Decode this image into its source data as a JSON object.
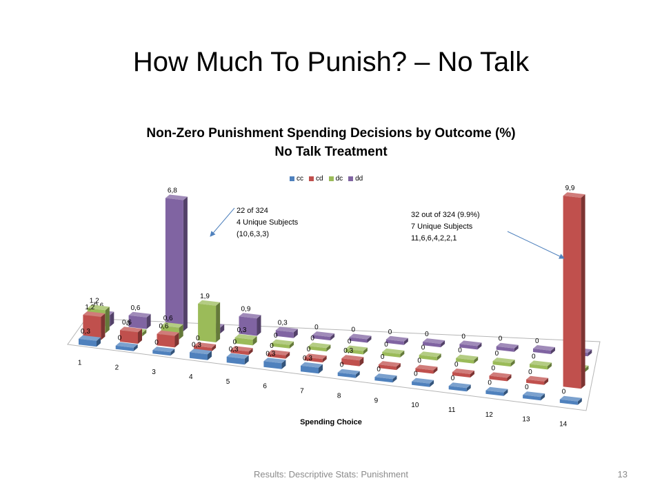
{
  "slide": {
    "title": "How Much To Punish? – No Talk",
    "footer": "Results: Descriptive Stats: Punishment",
    "page_number": "13"
  },
  "annotations": {
    "left": [
      "22 of 324",
      "4 Unique Subjects",
      "(10,6,3,3)"
    ],
    "right": [
      "32 out of 324  (9.9%)",
      "7 Unique Subjects",
      "11,6,6,4,2,2,1"
    ]
  },
  "chart_data": {
    "type": "bar",
    "style": "3d-column",
    "title": "Non-Zero Punishment Spending Decisions by Outcome (%)",
    "subtitle": "No Talk Treatment",
    "xlabel": "Spending Choice",
    "ylabel": "",
    "legend_position": "top",
    "categories": [
      "1",
      "2",
      "3",
      "4",
      "5",
      "6",
      "7",
      "8",
      "9",
      "10",
      "11",
      "12",
      "13",
      "14"
    ],
    "series": [
      {
        "name": "cc",
        "color": "#4f81bd",
        "values": [
          0.3,
          0,
          0,
          0.3,
          0.3,
          0.3,
          0.3,
          0,
          0,
          0,
          0,
          0,
          0,
          0
        ]
      },
      {
        "name": "cd",
        "color": "#c0504d",
        "values": [
          1.2,
          0.6,
          0.6,
          0,
          0,
          0,
          0,
          0.3,
          0,
          0,
          0,
          0,
          0,
          9.9
        ]
      },
      {
        "name": "dc",
        "color": "#9bbb59",
        "values": [
          1.2,
          0,
          0.6,
          1.9,
          0.3,
          0,
          0,
          0,
          0,
          0,
          0,
          0,
          0,
          0
        ]
      },
      {
        "name": "dd",
        "color": "#8064a2",
        "values": [
          0.6,
          0.6,
          6.8,
          0.3,
          0.9,
          0.3,
          0,
          0,
          0,
          0,
          0,
          0,
          0,
          0
        ]
      }
    ],
    "value_labels": {
      "cc": [
        "0,3",
        "0",
        "0",
        "0,3",
        "0,3",
        "0,3",
        "0,3",
        "0",
        "0",
        "0",
        "0",
        "0",
        "0",
        "0"
      ],
      "cd": [
        "1,2",
        "0,6",
        "0,6",
        "0",
        "0",
        "0",
        "0",
        "0,3",
        "0",
        "0",
        "0",
        "0",
        "0",
        "9,9"
      ],
      "dc": [
        "1,2",
        "0",
        "0,6",
        "1,9",
        "0,3",
        "0",
        "0",
        "0",
        "0",
        "0",
        "0",
        "0",
        "0",
        "0"
      ],
      "dd": [
        "0,6",
        "0,6",
        "6,8",
        "0,3",
        "0,9",
        "0,3",
        "0",
        "0",
        "0",
        "0",
        "0",
        "0",
        "0",
        "0"
      ]
    }
  }
}
